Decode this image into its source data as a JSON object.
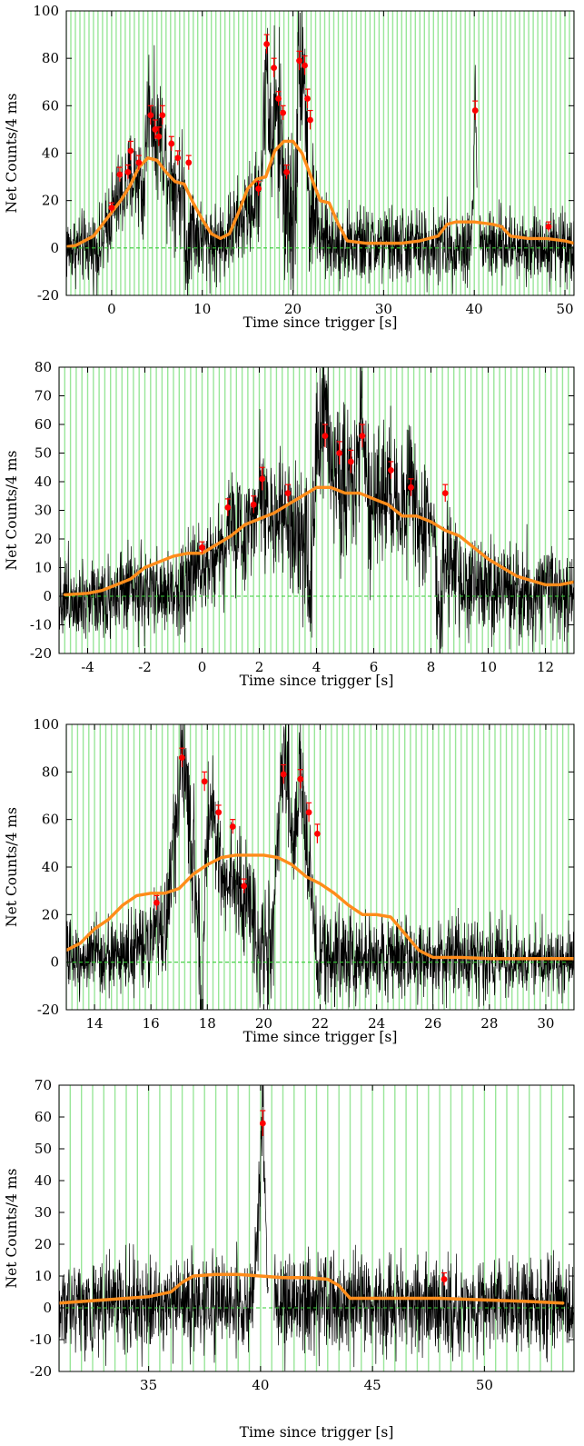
{
  "colors": {
    "background": "#ffffff",
    "signal": "#000000",
    "band": "#99e699",
    "smooth_curve": "#ff8c1a",
    "peak_marker": "#ff0000",
    "zero_line": "#33cc33"
  },
  "chart_data": [
    {
      "type": "line",
      "title": "",
      "xlabel": "Time since trigger [s]",
      "ylabel": "Net Counts/4 ms",
      "xlim": [
        -5,
        51
      ],
      "ylim": [
        -20,
        100
      ],
      "xticks": [
        0,
        10,
        20,
        30,
        40,
        50
      ],
      "yticks": [
        -20,
        0,
        20,
        40,
        60,
        80,
        100
      ],
      "grid": false,
      "band_spacing": 0.5,
      "smooth_curve": {
        "x": [
          -5,
          -4,
          -3,
          -2,
          -1,
          0,
          1,
          2,
          3,
          4,
          5,
          6,
          7,
          8,
          9,
          10,
          11,
          12,
          13,
          14,
          15,
          16,
          17,
          18,
          19,
          20,
          21,
          22,
          23,
          24,
          25,
          26,
          28,
          30,
          32,
          34,
          36,
          37,
          38,
          40,
          42,
          43,
          44,
          46,
          48,
          50,
          51
        ],
        "y": [
          0.5,
          1,
          3,
          5,
          10,
          15,
          20,
          26,
          34,
          38,
          37,
          32,
          28,
          27,
          19,
          12,
          6,
          4,
          6,
          15,
          25,
          29,
          30,
          41,
          45,
          45,
          40,
          30,
          20,
          19,
          10,
          3,
          2,
          2,
          2,
          3,
          5,
          10,
          11,
          11,
          10,
          9,
          5,
          4,
          4,
          3,
          2
        ]
      },
      "peaks": {
        "x": [
          0,
          0.9,
          1.8,
          2.1,
          3.0,
          4.3,
          4.8,
          5.2,
          5.6,
          6.6,
          7.3,
          8.5,
          16.2,
          17.1,
          17.9,
          18.4,
          18.9,
          19.3,
          20.7,
          21.3,
          21.6,
          21.9,
          40.1,
          48.2
        ],
        "y": [
          17,
          31,
          32,
          41,
          36,
          56,
          50,
          47,
          56,
          44,
          38,
          36,
          25,
          86,
          76,
          63,
          57,
          32,
          79,
          77,
          63,
          54,
          58,
          9
        ],
        "err": [
          2,
          3,
          3,
          4,
          3,
          4,
          4,
          4,
          4,
          3,
          3,
          3,
          3,
          4,
          4,
          3,
          3,
          3,
          4,
          4,
          4,
          4,
          4,
          2
        ]
      },
      "signal": {
        "baseline": [
          [
            -5,
            0
          ],
          [
            -1,
            0
          ],
          [
            -0.5,
            10
          ],
          [
            0,
            15
          ],
          [
            1,
            22
          ],
          [
            2,
            28
          ],
          [
            3,
            32
          ],
          [
            4,
            45
          ],
          [
            5,
            40
          ],
          [
            6,
            30
          ],
          [
            7,
            28
          ],
          [
            8,
            22
          ],
          [
            9,
            8
          ],
          [
            10,
            3
          ],
          [
            12,
            2
          ],
          [
            14,
            10
          ],
          [
            15,
            15
          ],
          [
            16,
            20
          ],
          [
            17,
            45
          ],
          [
            18,
            35
          ],
          [
            19,
            20
          ],
          [
            20,
            10
          ],
          [
            20.5,
            40
          ],
          [
            21,
            45
          ],
          [
            22,
            25
          ],
          [
            23,
            3
          ],
          [
            26,
            1
          ],
          [
            39.5,
            1
          ],
          [
            40.1,
            30
          ],
          [
            40.7,
            1
          ],
          [
            51,
            1
          ]
        ],
        "noise": [
          [
            -5,
            11
          ],
          [
            -2,
            11
          ],
          [
            0,
            13
          ],
          [
            4,
            18
          ],
          [
            8,
            18
          ],
          [
            10,
            12
          ],
          [
            16,
            14
          ],
          [
            18,
            28
          ],
          [
            21,
            28
          ],
          [
            23,
            12
          ],
          [
            51,
            11
          ]
        ],
        "bursts": [
          [
            4.2,
            0.5,
            18
          ],
          [
            5.5,
            0.6,
            12
          ],
          [
            17.1,
            0.3,
            35
          ],
          [
            17.9,
            0.3,
            30
          ],
          [
            18.6,
            0.4,
            22
          ],
          [
            20.8,
            0.3,
            40
          ],
          [
            21.3,
            0.3,
            28
          ],
          [
            40.1,
            0.15,
            35
          ]
        ],
        "dips": [
          [
            3.5,
            0.3,
            20
          ],
          [
            8.3,
            0.2,
            25
          ],
          [
            17.7,
            0.2,
            20
          ],
          [
            21.9,
            0.2,
            25
          ]
        ],
        "gaps": [
          [
            40.3,
            40.55
          ]
        ]
      }
    },
    {
      "type": "line",
      "title": "",
      "xlabel": "Time since trigger [s]",
      "ylabel": "Net Counts/4 ms",
      "xlim": [
        -5,
        13
      ],
      "ylim": [
        -20,
        80
      ],
      "xticks": [
        -4,
        -2,
        0,
        2,
        4,
        6,
        8,
        10,
        12
      ],
      "yticks": [
        -20,
        -10,
        0,
        10,
        20,
        30,
        40,
        50,
        60,
        70,
        80
      ],
      "grid": false,
      "band_spacing": 0.2,
      "smooth_curve": {
        "x": [
          -4.8,
          -4,
          -3.5,
          -3,
          -2.5,
          -2,
          -1.5,
          -1,
          -0.5,
          0,
          0.5,
          1,
          1.5,
          2,
          2.5,
          3,
          3.5,
          4,
          4.5,
          5,
          5.5,
          6,
          6.5,
          7,
          7.5,
          8,
          8.5,
          9,
          10,
          11,
          12,
          12.5,
          13
        ],
        "y": [
          0.5,
          1,
          2,
          4,
          6,
          10,
          12,
          14,
          15,
          15,
          18,
          21,
          25,
          27,
          29,
          32,
          35,
          38,
          38,
          36,
          36,
          34,
          32,
          28,
          28,
          26,
          23,
          21,
          13,
          7,
          4,
          4,
          5
        ]
      },
      "peaks": {
        "x": [
          0,
          0.9,
          1.8,
          2.1,
          3.0,
          4.3,
          4.8,
          5.2,
          5.6,
          6.6,
          7.3,
          8.5
        ],
        "y": [
          17,
          31,
          32,
          41,
          36,
          56,
          50,
          47,
          56,
          44,
          38,
          36
        ],
        "err": [
          2,
          3,
          3,
          4,
          3,
          4,
          4,
          4,
          4,
          3,
          3,
          3
        ]
      },
      "signal": {
        "baseline": [
          [
            -5,
            0
          ],
          [
            -1,
            1
          ],
          [
            -0.5,
            5
          ],
          [
            0,
            12
          ],
          [
            0.5,
            15
          ],
          [
            1,
            18
          ],
          [
            1.5,
            22
          ],
          [
            2,
            30
          ],
          [
            2.5,
            28
          ],
          [
            3,
            25
          ],
          [
            3.5,
            15
          ],
          [
            4,
            45
          ],
          [
            4.5,
            45
          ],
          [
            5,
            40
          ],
          [
            5.5,
            42
          ],
          [
            6,
            35
          ],
          [
            6.5,
            30
          ],
          [
            7,
            28
          ],
          [
            7.5,
            25
          ],
          [
            8,
            22
          ],
          [
            8.5,
            10
          ],
          [
            9,
            5
          ],
          [
            10,
            2
          ],
          [
            12,
            1
          ],
          [
            13,
            1
          ]
        ],
        "noise": [
          [
            -5,
            11
          ],
          [
            -1,
            11
          ],
          [
            1,
            14
          ],
          [
            3,
            15
          ],
          [
            4,
            20
          ],
          [
            7,
            20
          ],
          [
            8.5,
            15
          ],
          [
            13,
            11
          ]
        ],
        "bursts": [
          [
            4.3,
            0.2,
            20
          ],
          [
            5.6,
            0.2,
            18
          ],
          [
            7.3,
            0.2,
            15
          ],
          [
            2.0,
            0.15,
            12
          ],
          [
            1.0,
            0.15,
            10
          ],
          [
            6.5,
            0.2,
            10
          ]
        ],
        "dips": [
          [
            3.8,
            0.12,
            25
          ],
          [
            8.3,
            0.1,
            20
          ],
          [
            5.9,
            0.1,
            15
          ]
        ],
        "gaps": []
      }
    },
    {
      "type": "line",
      "title": "",
      "xlabel": "Time since trigger [s]",
      "ylabel": "Net Counts/4 ms",
      "xlim": [
        13,
        31
      ],
      "ylim": [
        -20,
        100
      ],
      "xticks": [
        14,
        16,
        18,
        20,
        22,
        24,
        26,
        28,
        30
      ],
      "yticks": [
        -20,
        0,
        20,
        40,
        60,
        80,
        100
      ],
      "grid": false,
      "band_spacing": 0.2,
      "smooth_curve": {
        "x": [
          13,
          13.5,
          14,
          14.5,
          15,
          15.5,
          16,
          16.5,
          17,
          17.5,
          18,
          18.5,
          19,
          19.5,
          20,
          20.5,
          21,
          21.5,
          22,
          22.5,
          23,
          23.5,
          24,
          24.5,
          25,
          25.5,
          26,
          27,
          28,
          30,
          31
        ],
        "y": [
          5,
          8,
          14,
          18,
          24,
          28,
          29,
          29,
          31,
          37,
          41,
          44,
          45,
          45,
          45,
          44,
          41,
          36,
          33,
          29,
          24,
          20,
          20,
          19,
          12,
          5,
          2,
          2,
          1.5,
          1.5,
          1.5
        ]
      },
      "peaks": {
        "x": [
          16.2,
          17.1,
          17.9,
          18.4,
          18.9,
          19.3,
          20.7,
          21.3,
          21.6,
          21.9
        ],
        "y": [
          25,
          86,
          76,
          63,
          57,
          32,
          79,
          77,
          63,
          54
        ],
        "err": [
          3,
          4,
          4,
          3,
          3,
          3,
          4,
          4,
          4,
          4
        ]
      },
      "signal": {
        "baseline": [
          [
            13,
            2
          ],
          [
            15,
            3
          ],
          [
            16,
            8
          ],
          [
            16.5,
            15
          ],
          [
            17,
            65
          ],
          [
            17.5,
            50
          ],
          [
            17.8,
            5
          ],
          [
            18,
            55
          ],
          [
            18.5,
            40
          ],
          [
            19,
            30
          ],
          [
            19.5,
            25
          ],
          [
            20,
            10
          ],
          [
            20.3,
            5
          ],
          [
            20.6,
            70
          ],
          [
            21,
            50
          ],
          [
            21.3,
            60
          ],
          [
            21.6,
            40
          ],
          [
            22,
            5
          ],
          [
            23,
            2
          ],
          [
            31,
            1
          ]
        ],
        "noise": [
          [
            13,
            11
          ],
          [
            16,
            12
          ],
          [
            17,
            20
          ],
          [
            19,
            18
          ],
          [
            20.5,
            20
          ],
          [
            22,
            14
          ],
          [
            31,
            11
          ]
        ],
        "bursts": [
          [
            17.1,
            0.15,
            25
          ],
          [
            18.2,
            0.15,
            15
          ],
          [
            20.8,
            0.15,
            22
          ],
          [
            21.3,
            0.15,
            18
          ]
        ],
        "dips": [
          [
            17.8,
            0.08,
            40
          ],
          [
            19.8,
            0.1,
            15
          ],
          [
            21.9,
            0.08,
            20
          ]
        ],
        "gaps": []
      }
    },
    {
      "type": "line",
      "title": "",
      "xlabel": "Time since trigger [s]",
      "ylabel": "Net Counts/4 ms",
      "xlim": [
        31,
        54
      ],
      "ylim": [
        -20,
        70
      ],
      "xticks": [
        35,
        40,
        45,
        50
      ],
      "yticks": [
        -20,
        -10,
        0,
        10,
        20,
        30,
        40,
        50,
        60,
        70
      ],
      "grid": false,
      "band_spacing": 0.5,
      "smooth_curve": {
        "x": [
          31,
          32,
          33,
          34,
          35,
          36,
          36.5,
          37,
          38,
          39,
          40,
          41,
          42,
          43,
          43.5,
          44,
          45,
          46,
          48,
          50,
          52,
          53.5
        ],
        "y": [
          1.5,
          2,
          2.5,
          3,
          3.5,
          5,
          8,
          10,
          10.5,
          10.5,
          10,
          9.5,
          9.5,
          9,
          7,
          3,
          3,
          3,
          3,
          2.5,
          2,
          1.5
        ]
      },
      "peaks": {
        "x": [
          40.1,
          48.2
        ],
        "y": [
          58,
          9
        ],
        "err": [
          4,
          2
        ]
      },
      "signal": {
        "baseline": [
          [
            31,
            1
          ],
          [
            39.6,
            1
          ],
          [
            39.9,
            30
          ],
          [
            40.1,
            45
          ],
          [
            40.3,
            10
          ],
          [
            40.7,
            1
          ],
          [
            54,
            1
          ]
        ],
        "noise": [
          [
            31,
            11
          ],
          [
            54,
            11
          ]
        ],
        "bursts": [
          [
            40.1,
            0.12,
            20
          ]
        ],
        "dips": [],
        "gaps": [
          [
            40.35,
            40.6
          ]
        ]
      }
    }
  ]
}
